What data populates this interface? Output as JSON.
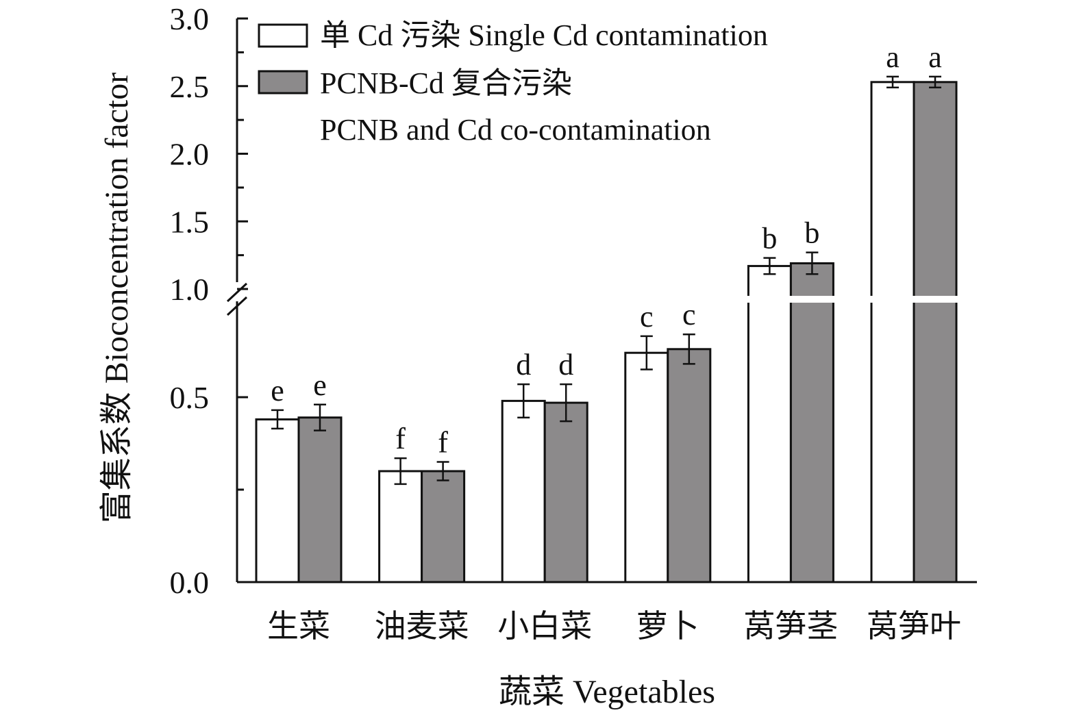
{
  "chart_data": {
    "type": "bar",
    "title": "",
    "xlabel": "蔬菜 Vegetables",
    "ylabel": "富集系数 Bioconcentration factor",
    "categories": [
      "生菜",
      "油麦菜",
      "小白菜",
      "萝卜",
      "莴笋茎",
      "莴笋叶"
    ],
    "series": [
      {
        "name": "单 Cd 污染 Single Cd contamination",
        "color": "#ffffff",
        "values": [
          0.44,
          0.3,
          0.49,
          0.62,
          1.17,
          2.53
        ],
        "errors": [
          0.025,
          0.035,
          0.045,
          0.045,
          0.06,
          0.04
        ],
        "labels": [
          "e",
          "f",
          "d",
          "c",
          "b",
          "a"
        ]
      },
      {
        "name": "PCNB-Cd 复合污染 PCNB and Cd co-contamination",
        "color": "#8c8a8b",
        "values": [
          0.445,
          0.3,
          0.485,
          0.63,
          1.19,
          2.53
        ],
        "errors": [
          0.035,
          0.025,
          0.05,
          0.04,
          0.08,
          0.04
        ],
        "labels": [
          "e",
          "f",
          "d",
          "c",
          "b",
          "a"
        ]
      }
    ],
    "y_axis": {
      "broken": true,
      "lower_range": [
        0,
        0.75
      ],
      "upper_range": [
        1.0,
        3.0
      ],
      "ticks": [
        {
          "value": 0.0,
          "label": "0.0"
        },
        {
          "value": 0.5,
          "label": "0.5"
        },
        {
          "value": 1.0,
          "label": "1.0"
        },
        {
          "value": 1.5,
          "label": "1.5"
        },
        {
          "value": 2.0,
          "label": "2.0"
        },
        {
          "value": 2.5,
          "label": "2.5"
        },
        {
          "value": 3.0,
          "label": "3.0"
        }
      ]
    },
    "legend": {
      "position": "top-left",
      "entries": [
        {
          "lines": [
            "单 Cd 污染 Single Cd contamination"
          ]
        },
        {
          "lines": [
            "PCNB-Cd 复合污染",
            "PCNB and Cd co-contamination"
          ]
        }
      ]
    },
    "grid": false
  }
}
